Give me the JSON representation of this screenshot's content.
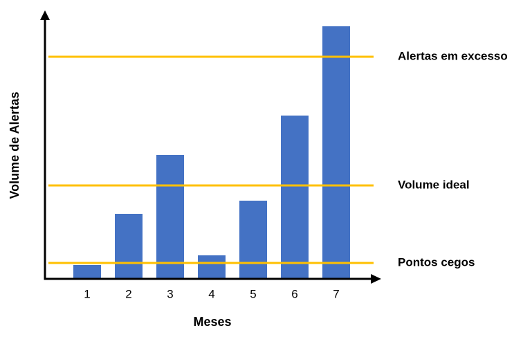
{
  "chart_data": {
    "type": "bar",
    "x_label": "Meses",
    "y_label": "Volume de Alertas",
    "categories": [
      "1",
      "2",
      "3",
      "4",
      "5",
      "6",
      "7"
    ],
    "values": [
      20,
      94,
      179,
      34,
      113,
      236,
      365
    ],
    "color": "#4472c4",
    "ylim": [
      0,
      388
    ],
    "reference_lines": [
      {
        "label": "Pontos cegos",
        "value": 23,
        "color": "#ffc000"
      },
      {
        "label": "Volume ideal",
        "value": 135,
        "color": "#ffc000"
      },
      {
        "label": "Alertas em excesso",
        "value": 321,
        "color": "#ffc000"
      }
    ]
  }
}
